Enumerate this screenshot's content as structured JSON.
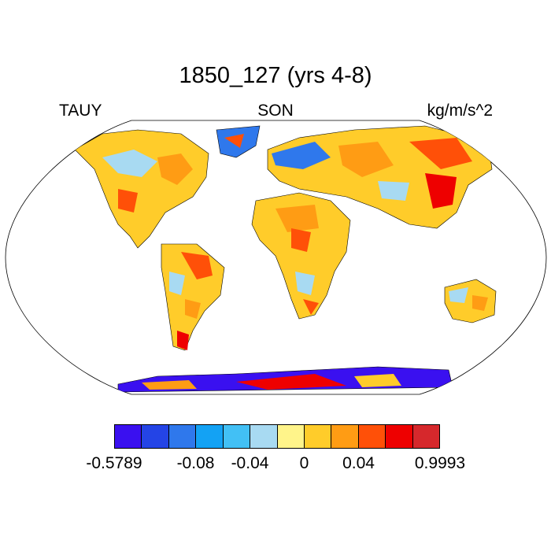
{
  "title": "1850_127 (yrs 4-8)",
  "subtitle_left": "TAUY",
  "subtitle_center": "SON",
  "subtitle_right": "kg/m/s^2",
  "colorbar": {
    "colors": [
      "#3a10f0",
      "#2444e6",
      "#2f78ec",
      "#13a2f4",
      "#42c0f5",
      "#a8daf2",
      "#fff48a",
      "#ffcc2a",
      "#ff9c14",
      "#ff5008",
      "#ee0000",
      "#d6282c"
    ],
    "labels": [
      {
        "text": "-0.5789",
        "boundary": 0
      },
      {
        "text": "-0.08",
        "boundary": 3
      },
      {
        "text": "-0.04",
        "boundary": 5
      },
      {
        "text": "0",
        "boundary": 7
      },
      {
        "text": "0.04",
        "boundary": 9
      },
      {
        "text": "0.9993",
        "boundary": 12
      }
    ]
  }
}
